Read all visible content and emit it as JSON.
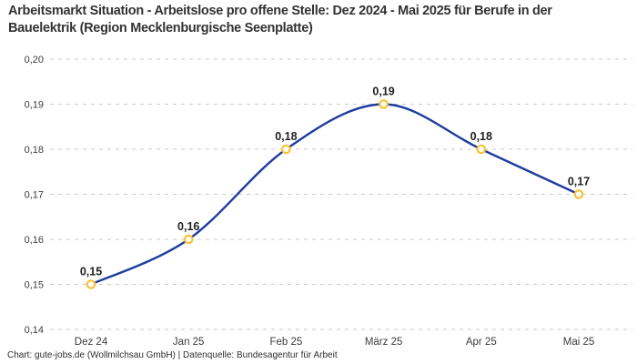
{
  "title": {
    "text": "Arbeitsmarkt Situation - Arbeitslose pro offene Stelle: Dez 2024 - Mai 2025 für Berufe in der Bauelektrik (Region Mecklenburgische Seenplatte)"
  },
  "footer": {
    "text": "Chart: gute-jobs.de (Wollmilchsau GmbH) | Datenquelle: Bundesagentur für Arbeit"
  },
  "chart_data": {
    "type": "line",
    "title": "Arbeitsmarkt Situation - Arbeitslose pro offene Stelle: Dez 2024 - Mai 2025 für Berufe in der Bauelektrik (Region Mecklenburgische Seenplatte)",
    "categories": [
      "Dez 24",
      "Jan 25",
      "Feb 25",
      "März 25",
      "Apr 25",
      "Mai 25"
    ],
    "values": [
      0.15,
      0.16,
      0.18,
      0.19,
      0.18,
      0.17
    ],
    "point_labels": [
      "0,15",
      "0,16",
      "0,18",
      "0,19",
      "0,18",
      "0,17"
    ],
    "xlabel": "",
    "ylabel": "",
    "ylim": [
      0.14,
      0.2
    ],
    "y_ticks": [
      {
        "value": 0.2,
        "label": "0,20"
      },
      {
        "value": 0.19,
        "label": "0,19"
      },
      {
        "value": 0.18,
        "label": "0,18"
      },
      {
        "value": 0.17,
        "label": "0,17"
      },
      {
        "value": 0.16,
        "label": "0,16"
      },
      {
        "value": 0.15,
        "label": "0,15"
      },
      {
        "value": 0.14,
        "label": "0,14"
      }
    ],
    "grid": "horizontal-dashed",
    "legend": "none",
    "line_color": "#1E3D9E",
    "marker_stroke_color": "#F9C233",
    "marker_fill_color": "#FFFFFF",
    "grid_color": "#cbcbcb"
  }
}
